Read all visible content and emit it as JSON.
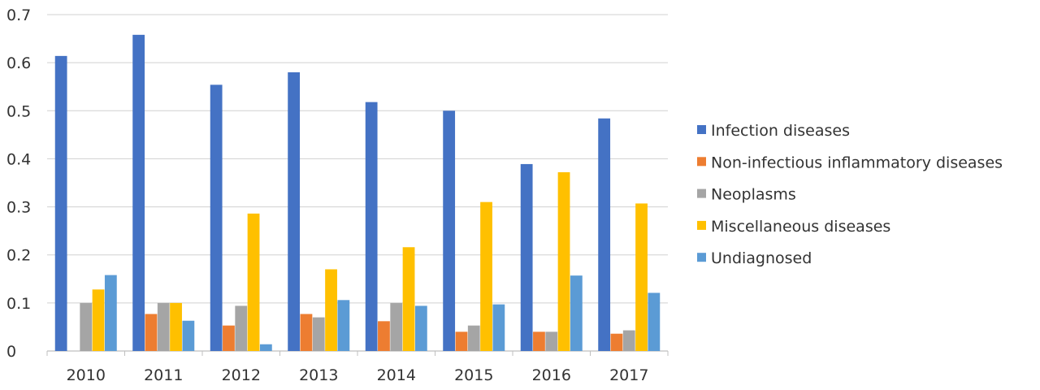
{
  "chart_data": {
    "type": "bar",
    "categories": [
      "2010",
      "2011",
      "2012",
      "2013",
      "2014",
      "2015",
      "2016",
      "2017"
    ],
    "series": [
      {
        "name": "Infection diseases",
        "color": "#4472C4",
        "values": [
          0.614,
          0.658,
          0.554,
          0.58,
          0.518,
          0.5,
          0.389,
          0.484
        ]
      },
      {
        "name": "Non-infectious inflammatory diseases",
        "color": "#ED7D31",
        "values": [
          0.0,
          0.077,
          0.053,
          0.077,
          0.062,
          0.04,
          0.04,
          0.036
        ]
      },
      {
        "name": "Neoplasms",
        "color": "#A5A5A5",
        "values": [
          0.1,
          0.1,
          0.094,
          0.07,
          0.1,
          0.053,
          0.04,
          0.043
        ]
      },
      {
        "name": "Miscellaneous diseases",
        "color": "#FFC000",
        "values": [
          0.128,
          0.1,
          0.286,
          0.17,
          0.216,
          0.31,
          0.372,
          0.307
        ]
      },
      {
        "name": "Undiagnosed",
        "color": "#5B9BD5",
        "values": [
          0.158,
          0.063,
          0.014,
          0.106,
          0.094,
          0.097,
          0.157,
          0.121
        ]
      }
    ],
    "yticks": [
      "0",
      "0.1",
      "0.2",
      "0.3",
      "0.4",
      "0.5",
      "0.6",
      "0.7"
    ],
    "ylim": [
      0,
      0.7
    ],
    "grid": true,
    "legend_position": "right",
    "title": "",
    "xlabel": "",
    "ylabel": ""
  }
}
